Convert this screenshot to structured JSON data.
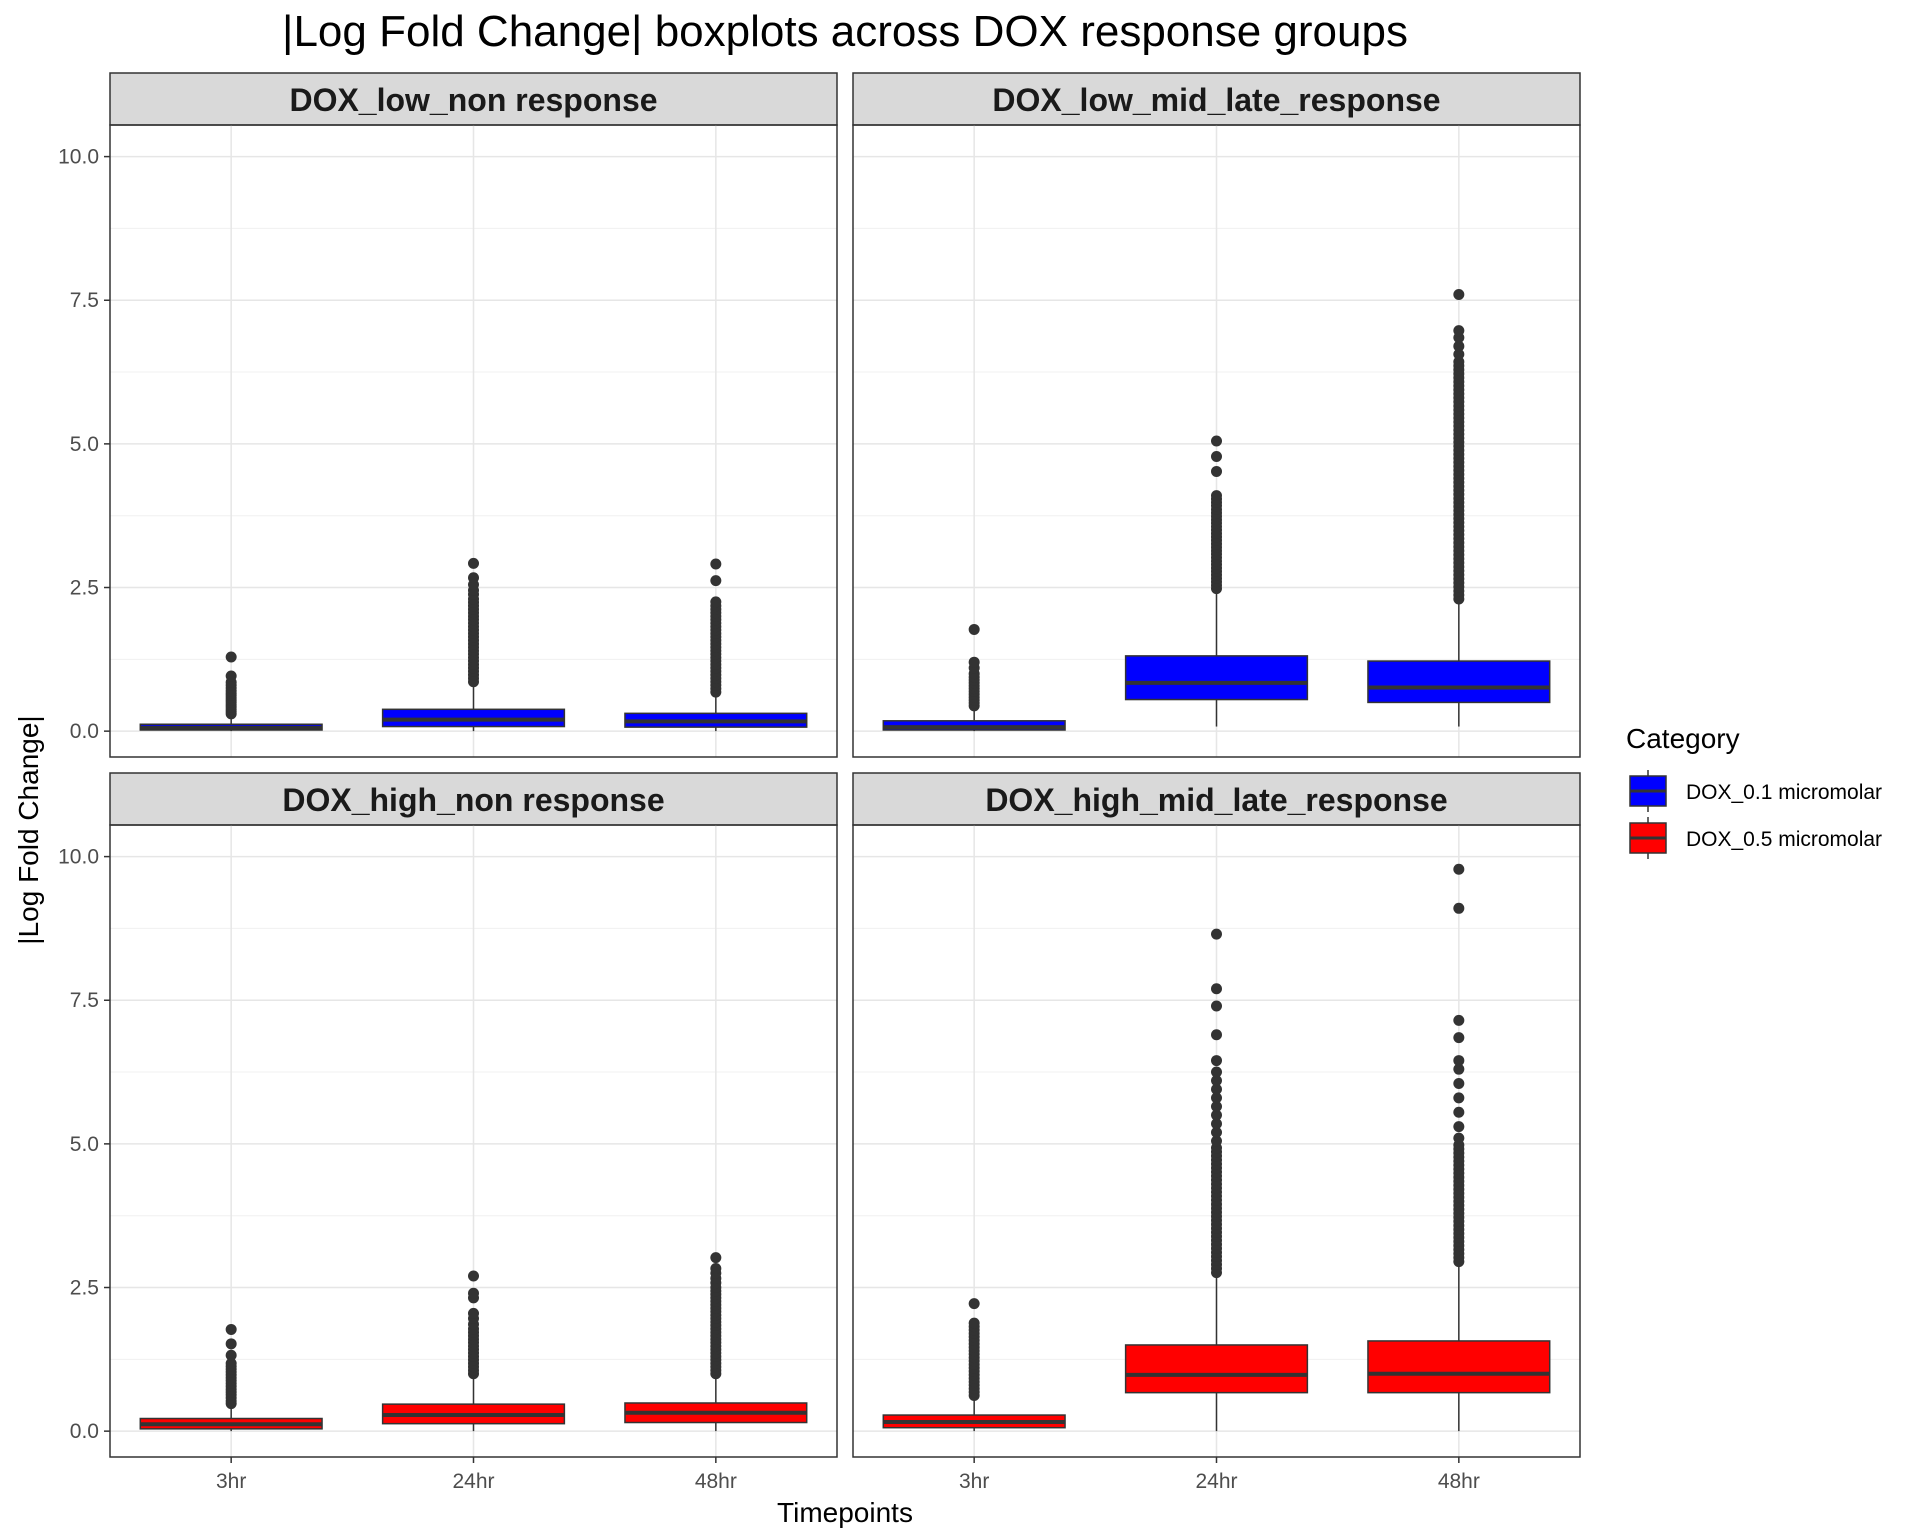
{
  "chart_data": {
    "type": "boxplot",
    "title": "|Log Fold Change| boxplots across DOX response groups",
    "xlabel": "Timepoints",
    "ylabel": "|Log Fold Change|",
    "ylim": [
      -0.45,
      10.55
    ],
    "yticks": [
      "0.0",
      "2.5",
      "5.0",
      "7.5",
      "10.0"
    ],
    "categories": [
      "3hr",
      "24hr",
      "48hr"
    ],
    "legend": {
      "title": "Category",
      "placement": "right",
      "entries": [
        {
          "label": "DOX_0.1 micromolar",
          "color": "#0000FF"
        },
        {
          "label": "DOX_0.5 micromolar",
          "color": "#FF0000"
        }
      ]
    },
    "grid": true,
    "panels": [
      {
        "label": "DOX_low_non response",
        "color": "#0000FF",
        "boxes": [
          {
            "x": "3hr",
            "q1": 0.02,
            "median": 0.06,
            "q3": 0.12,
            "whisker_low": 0.0,
            "whisker_high": 0.27,
            "outliers": [
              0.3,
              0.34,
              0.38,
              0.42,
              0.46,
              0.5,
              0.54,
              0.58,
              0.62,
              0.66,
              0.7,
              0.75,
              0.8,
              0.85,
              0.96,
              1.29
            ]
          },
          {
            "x": "24hr",
            "q1": 0.08,
            "median": 0.2,
            "q3": 0.38,
            "whisker_low": 0.0,
            "whisker_high": 0.82,
            "outliers": [
              0.86,
              0.92,
              0.98,
              1.04,
              1.1,
              1.16,
              1.22,
              1.28,
              1.34,
              1.4,
              1.46,
              1.52,
              1.58,
              1.64,
              1.7,
              1.76,
              1.82,
              1.88,
              1.94,
              2.0,
              2.06,
              2.12,
              2.18,
              2.24,
              2.3,
              2.38,
              2.45,
              2.55,
              2.67,
              2.92
            ]
          },
          {
            "x": "48hr",
            "q1": 0.07,
            "median": 0.17,
            "q3": 0.31,
            "whisker_low": 0.0,
            "whisker_high": 0.63,
            "outliers": [
              0.68,
              0.74,
              0.8,
              0.86,
              0.92,
              0.98,
              1.04,
              1.1,
              1.16,
              1.22,
              1.28,
              1.34,
              1.4,
              1.46,
              1.52,
              1.58,
              1.64,
              1.7,
              1.76,
              1.82,
              1.88,
              1.94,
              2.0,
              2.06,
              2.12,
              2.18,
              2.25,
              2.62,
              2.91
            ]
          }
        ]
      },
      {
        "label": "DOX_low_mid_late_response",
        "color": "#0000FF",
        "boxes": [
          {
            "x": "3hr",
            "q1": 0.02,
            "median": 0.07,
            "q3": 0.18,
            "whisker_low": 0.0,
            "whisker_high": 0.4,
            "outliers": [
              0.44,
              0.49,
              0.54,
              0.59,
              0.64,
              0.69,
              0.74,
              0.79,
              0.84,
              0.89,
              0.94,
              1.0,
              1.1,
              1.2,
              1.77
            ]
          },
          {
            "x": "24hr",
            "q1": 0.55,
            "median": 0.84,
            "q3": 1.31,
            "whisker_low": 0.08,
            "whisker_high": 2.45,
            "outliers": [
              2.48,
              2.54,
              2.6,
              2.66,
              2.72,
              2.78,
              2.84,
              2.9,
              2.96,
              3.02,
              3.08,
              3.14,
              3.2,
              3.26,
              3.32,
              3.38,
              3.44,
              3.5,
              3.56,
              3.62,
              3.68,
              3.74,
              3.8,
              3.86,
              3.92,
              3.98,
              4.04,
              4.1,
              4.52,
              4.78,
              5.05
            ]
          },
          {
            "x": "48hr",
            "q1": 0.5,
            "median": 0.76,
            "q3": 1.22,
            "whisker_low": 0.08,
            "whisker_high": 2.27,
            "outliers": [
              2.3,
              2.37,
              2.44,
              2.51,
              2.58,
              2.65,
              2.72,
              2.79,
              2.86,
              2.93,
              3.0,
              3.07,
              3.14,
              3.21,
              3.28,
              3.35,
              3.42,
              3.49,
              3.56,
              3.63,
              3.7,
              3.77,
              3.84,
              3.91,
              3.98,
              4.05,
              4.12,
              4.19,
              4.26,
              4.33,
              4.4,
              4.47,
              4.54,
              4.61,
              4.68,
              4.75,
              4.82,
              4.89,
              4.96,
              5.03,
              5.1,
              5.17,
              5.24,
              5.31,
              5.38,
              5.45,
              5.52,
              5.59,
              5.66,
              5.73,
              5.8,
              5.87,
              5.94,
              6.01,
              6.08,
              6.15,
              6.22,
              6.29,
              6.36,
              6.43,
              6.56,
              6.7,
              6.85,
              6.97,
              7.6
            ]
          }
        ]
      },
      {
        "label": "DOX_high_non response",
        "color": "#FF0000",
        "boxes": [
          {
            "x": "3hr",
            "q1": 0.04,
            "median": 0.12,
            "q3": 0.22,
            "whisker_low": 0.0,
            "whisker_high": 0.44,
            "outliers": [
              0.48,
              0.53,
              0.58,
              0.63,
              0.68,
              0.73,
              0.78,
              0.83,
              0.88,
              0.93,
              0.98,
              1.03,
              1.08,
              1.13,
              1.18,
              1.32,
              1.52,
              1.77
            ]
          },
          {
            "x": "24hr",
            "q1": 0.13,
            "median": 0.28,
            "q3": 0.47,
            "whisker_low": 0.0,
            "whisker_high": 0.97,
            "outliers": [
              1.0,
              1.06,
              1.12,
              1.18,
              1.24,
              1.3,
              1.36,
              1.42,
              1.48,
              1.54,
              1.6,
              1.66,
              1.72,
              1.78,
              1.86,
              1.96,
              2.05,
              2.32,
              2.4,
              2.7
            ]
          },
          {
            "x": "48hr",
            "q1": 0.15,
            "median": 0.32,
            "q3": 0.49,
            "whisker_low": 0.0,
            "whisker_high": 0.97,
            "outliers": [
              1.0,
              1.06,
              1.12,
              1.18,
              1.24,
              1.3,
              1.36,
              1.42,
              1.48,
              1.54,
              1.6,
              1.66,
              1.72,
              1.78,
              1.84,
              1.9,
              1.96,
              2.02,
              2.08,
              2.14,
              2.2,
              2.26,
              2.32,
              2.38,
              2.44,
              2.5,
              2.58,
              2.66,
              2.75,
              2.83,
              3.02
            ]
          }
        ]
      },
      {
        "label": "DOX_high_mid_late_response",
        "color": "#FF0000",
        "boxes": [
          {
            "x": "3hr",
            "q1": 0.06,
            "median": 0.16,
            "q3": 0.28,
            "whisker_low": 0.0,
            "whisker_high": 0.58,
            "outliers": [
              0.62,
              0.68,
              0.74,
              0.8,
              0.86,
              0.92,
              0.98,
              1.04,
              1.1,
              1.16,
              1.22,
              1.28,
              1.34,
              1.4,
              1.46,
              1.52,
              1.58,
              1.64,
              1.7,
              1.76,
              1.82,
              1.88,
              2.22
            ]
          },
          {
            "x": "24hr",
            "q1": 0.67,
            "median": 0.98,
            "q3": 1.5,
            "whisker_low": 0.0,
            "whisker_high": 2.73,
            "outliers": [
              2.76,
              2.83,
              2.9,
              2.97,
              3.04,
              3.11,
              3.18,
              3.25,
              3.32,
              3.39,
              3.46,
              3.53,
              3.6,
              3.67,
              3.74,
              3.81,
              3.88,
              3.95,
              4.02,
              4.09,
              4.16,
              4.23,
              4.3,
              4.37,
              4.44,
              4.51,
              4.58,
              4.65,
              4.72,
              4.79,
              4.86,
              4.93,
              5.05,
              5.2,
              5.35,
              5.5,
              5.65,
              5.8,
              5.95,
              6.1,
              6.25,
              6.45,
              6.9,
              7.4,
              7.7,
              8.65
            ]
          },
          {
            "x": "48hr",
            "q1": 0.67,
            "median": 1.0,
            "q3": 1.57,
            "whisker_low": 0.0,
            "whisker_high": 2.92,
            "outliers": [
              2.95,
              3.02,
              3.09,
              3.16,
              3.23,
              3.3,
              3.37,
              3.44,
              3.51,
              3.58,
              3.65,
              3.72,
              3.79,
              3.86,
              3.93,
              4.0,
              4.07,
              4.14,
              4.21,
              4.28,
              4.35,
              4.42,
              4.49,
              4.56,
              4.63,
              4.7,
              4.77,
              4.84,
              4.91,
              4.98,
              5.1,
              5.3,
              5.55,
              5.8,
              6.05,
              6.3,
              6.45,
              6.85,
              7.15,
              9.1,
              9.78
            ]
          }
        ]
      }
    ]
  }
}
